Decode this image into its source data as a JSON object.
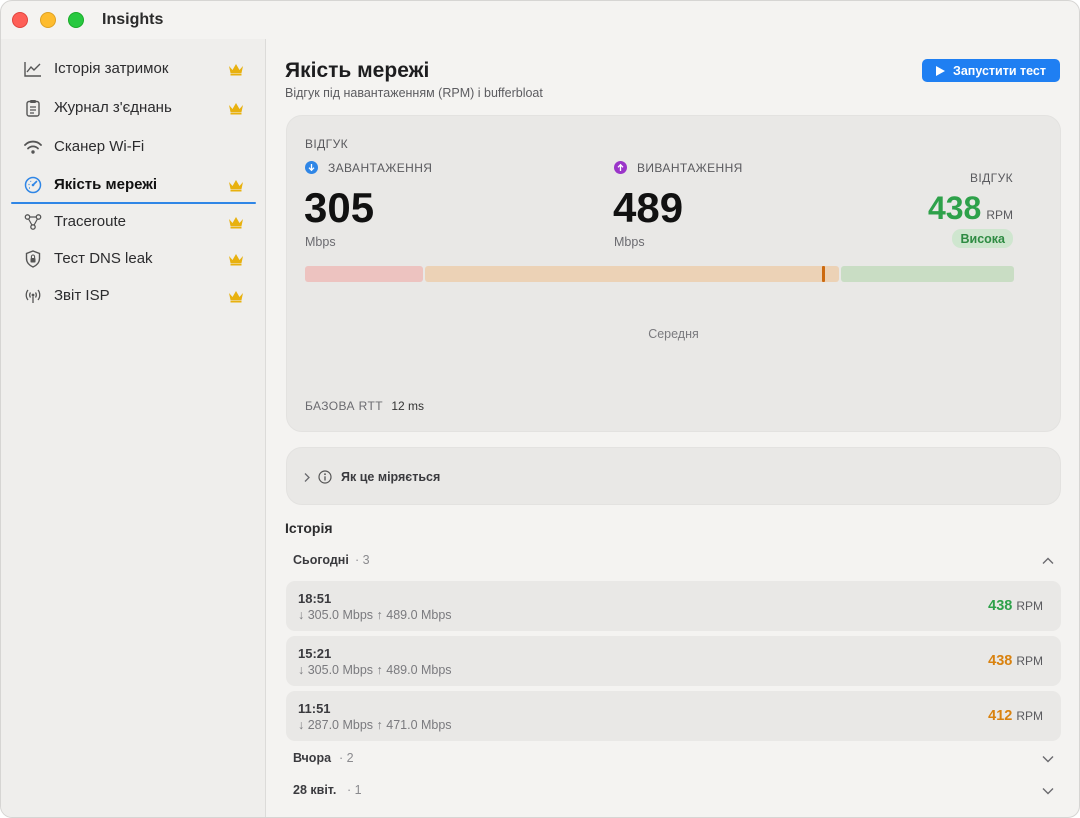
{
  "app": {
    "title": "Insights"
  },
  "sidebar": {
    "items": [
      {
        "label": "Історія затримок",
        "icon": "chart-line-icon",
        "premium": true
      },
      {
        "label": "Журнал з'єднань",
        "icon": "clipboard-icon",
        "premium": true
      },
      {
        "label": "Сканер Wi-Fi",
        "icon": "wifi-icon",
        "premium": false
      },
      {
        "label": "Якість мережі",
        "icon": "gauge-icon",
        "premium": true,
        "active": true
      },
      {
        "label": "Traceroute",
        "icon": "route-icon",
        "premium": true
      },
      {
        "label": "Тест DNS leak",
        "icon": "shield-icon",
        "premium": true
      },
      {
        "label": "Звіт ISP",
        "icon": "antenna-icon",
        "premium": true
      }
    ]
  },
  "header": {
    "title": "Якість мережі",
    "subtitle": "Відгук під навантаженням (RPM) і bufferbloat",
    "run_button": "Запустити тест"
  },
  "result": {
    "section_label": "ВІДГУК",
    "download": {
      "label": "ЗАВАНТАЖЕННЯ",
      "value": "305",
      "unit": "Mbps",
      "color": "#2f86e6"
    },
    "upload": {
      "label": "ВИВАНТАЖЕННЯ",
      "value": "489",
      "unit": "Mbps",
      "color": "#9b35c9"
    },
    "responsiveness": {
      "label": "ВІДГУК",
      "value": "438",
      "unit": "RPM",
      "badge": "Висока",
      "color": "#2ea14a"
    },
    "scale": {
      "marker_fraction": 0.731,
      "label": "Середня"
    },
    "base_rtt": {
      "label": "БАЗОВА RTT",
      "value": "12 ms"
    }
  },
  "how": {
    "label": "Як це міряється"
  },
  "history": {
    "title": "Історія",
    "groups": [
      {
        "label": "Сьогодні",
        "count": "· 3",
        "expanded": true,
        "rows": [
          {
            "time": "18:51",
            "speeds": "↓ 305.0 Mbps  ↑ 489.0 Mbps",
            "rpm": "438",
            "unit": "RPM",
            "color": "#2ea14a"
          },
          {
            "time": "15:21",
            "speeds": "↓ 305.0 Mbps  ↑ 489.0 Mbps",
            "rpm": "438",
            "unit": "RPM",
            "color": "#d9820f"
          },
          {
            "time": "11:51",
            "speeds": "↓ 287.0 Mbps  ↑ 471.0 Mbps",
            "rpm": "412",
            "unit": "RPM",
            "color": "#d9820f"
          }
        ]
      },
      {
        "label": "Вчора",
        "count": "· 2",
        "expanded": false
      },
      {
        "label": "28 квіт.",
        "count": "· 1",
        "expanded": false
      }
    ]
  }
}
